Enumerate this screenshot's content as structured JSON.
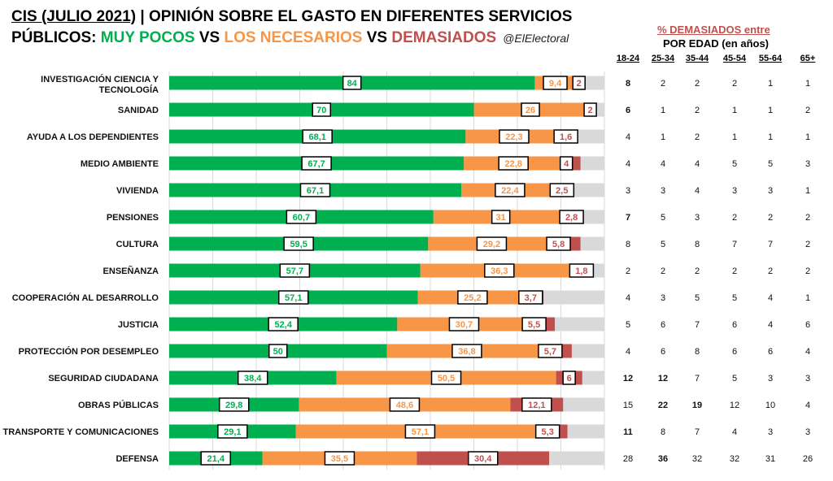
{
  "title": {
    "prefix": "CIS (JULIO 2021)",
    "rest": " | OPINIÓN SOBRE EL GASTO EN DIFERENTES SERVICIOS",
    "line2_start": "PÚBLICOS: ",
    "muy_pocos": "MUY POCOS",
    "vs1": " VS ",
    "necesarios": "LOS NECESARIOS",
    "vs2": " VS ",
    "demasiados": "DEMASIADOS",
    "handle": "@ElElectoral"
  },
  "colors": {
    "muy_pocos": "#00b050",
    "necesarios": "#f79646",
    "demasiados": "#c0504d",
    "resto": "#d9d9d9",
    "highlight_title": "#c0504d"
  },
  "side_table": {
    "title": "% DEMASIADOS entre",
    "subtitle": "POR EDAD (en años)",
    "age_groups": [
      "18-24",
      "25-34",
      "35-44",
      "45-54",
      "55-64",
      "65+"
    ]
  },
  "chart_data": {
    "type": "bar",
    "orientation": "horizontal",
    "stacked": true,
    "xlim": [
      0,
      100
    ],
    "categories": [
      "INVESTIGACIÓN CIENCIA Y TECNOLOGÍA",
      "SANIDAD",
      "AYUDA A LOS DEPENDIENTES",
      "MEDIO AMBIENTE",
      "VIVIENDA",
      "PENSIONES",
      "CULTURA",
      "ENSEÑANZA",
      "COOPERACIÓN AL DESARROLLO",
      "JUSTICIA",
      "PROTECCIÓN POR DESEMPLEO",
      "SEGURIDAD CIUDADANA",
      "OBRAS PÚBLICAS",
      "TRANSPORTE Y COMUNICACIONES",
      "DEFENSA"
    ],
    "series": [
      {
        "name": "MUY POCOS",
        "values": [
          84,
          70,
          68.1,
          67.7,
          67.1,
          60.7,
          59.5,
          57.7,
          57.1,
          52.4,
          50,
          38.4,
          29.8,
          29.1,
          21.4
        ],
        "labels": [
          "84",
          "70",
          "68,1",
          "67,7",
          "67,1",
          "60,7",
          "59,5",
          "57,7",
          "57,1",
          "52,4",
          "50",
          "38,4",
          "29,8",
          "29,1",
          "21,4"
        ]
      },
      {
        "name": "LOS NECESARIOS",
        "values": [
          9.4,
          26,
          22.3,
          22.8,
          22.4,
          31,
          29.2,
          36.3,
          25.2,
          30.7,
          36.8,
          50.5,
          48.6,
          57.1,
          35.5
        ],
        "labels": [
          "9,4",
          "26",
          "22,3",
          "22,8",
          "22,4",
          "31",
          "29,2",
          "36,3",
          "25,2",
          "30,7",
          "36,8",
          "50,5",
          "48,6",
          "57,1",
          "35,5"
        ]
      },
      {
        "name": "DEMASIADOS",
        "values": [
          2,
          2,
          1.6,
          4,
          2.5,
          2.8,
          5.8,
          1.8,
          3.7,
          5.5,
          5.7,
          6,
          12.1,
          5.3,
          30.4
        ],
        "labels": [
          "2",
          "2",
          "1,6",
          "4",
          "2,5",
          "2,8",
          "5,8",
          "1,8",
          "3,7",
          "5,5",
          "5,7",
          "6",
          "12,1",
          "5,3",
          "30,4"
        ]
      }
    ],
    "demasiados_por_edad": [
      [
        "8",
        "2",
        "2",
        "2",
        "1",
        "1"
      ],
      [
        "6",
        "1",
        "2",
        "1",
        "1",
        "2"
      ],
      [
        "4",
        "1",
        "2",
        "1",
        "1",
        "1"
      ],
      [
        "4",
        "4",
        "4",
        "5",
        "5",
        "3"
      ],
      [
        "3",
        "3",
        "4",
        "3",
        "3",
        "1"
      ],
      [
        "7",
        "5",
        "3",
        "2",
        "2",
        "2"
      ],
      [
        "8",
        "5",
        "8",
        "7",
        "7",
        "2"
      ],
      [
        "2",
        "2",
        "2",
        "2",
        "2",
        "2"
      ],
      [
        "4",
        "3",
        "5",
        "5",
        "4",
        "1"
      ],
      [
        "5",
        "6",
        "7",
        "6",
        "4",
        "6"
      ],
      [
        "4",
        "6",
        "8",
        "6",
        "6",
        "4"
      ],
      [
        "12",
        "12",
        "7",
        "5",
        "3",
        "3"
      ],
      [
        "15",
        "22",
        "19",
        "12",
        "10",
        "4"
      ],
      [
        "11",
        "8",
        "7",
        "4",
        "3",
        "3"
      ],
      [
        "28",
        "36",
        "32",
        "32",
        "31",
        "26"
      ]
    ],
    "bold_cells": [
      [
        0,
        0
      ],
      [
        1,
        0
      ],
      [
        5,
        0
      ],
      [
        11,
        0
      ],
      [
        11,
        1
      ],
      [
        12,
        1
      ],
      [
        12,
        2
      ],
      [
        13,
        0
      ],
      [
        14,
        1
      ]
    ],
    "grid": true,
    "legend": "none"
  }
}
